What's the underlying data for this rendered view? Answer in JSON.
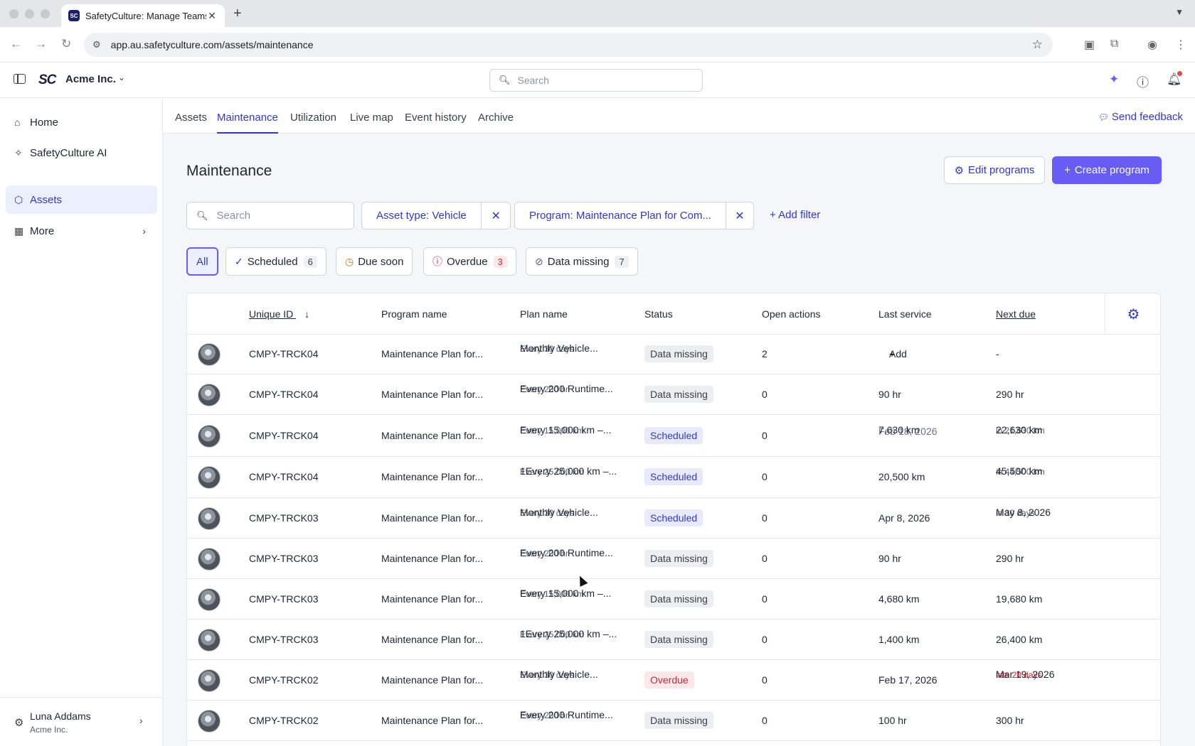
{
  "browser": {
    "tab_title": "SafetyCulture: Manage Teams",
    "favicon_text": "SC",
    "url": "app.au.safetyculture.com/assets/maintenance"
  },
  "header": {
    "logo_text": "SC",
    "org_name": "Acme Inc.",
    "search_placeholder": "Search"
  },
  "leftnav": {
    "items": [
      {
        "label": "Home",
        "icon": "home-icon"
      },
      {
        "label": "SafetyCulture AI",
        "icon": "sparkle-icon"
      },
      {
        "label": "Assets",
        "icon": "cube-icon",
        "active": true
      },
      {
        "label": "More",
        "icon": "grid-icon"
      }
    ],
    "user": {
      "name": "Luna Addams",
      "org": "Acme Inc."
    }
  },
  "subtabs": {
    "items": [
      "Assets",
      "Maintenance",
      "Utilization",
      "Live map",
      "Event history",
      "Archive"
    ],
    "active": "Maintenance",
    "feedback": "Send feedback"
  },
  "page": {
    "title": "Maintenance",
    "edit_programs": "Edit programs",
    "create_program": "Create program",
    "search_placeholder": "Search",
    "filters": {
      "asset_type": "Asset type: Vehicle",
      "program": "Program: Maintenance Plan for Com...",
      "add_filter": "Add filter"
    },
    "segments": {
      "all": "All",
      "scheduled": {
        "label": "Scheduled",
        "count": "6"
      },
      "due_soon": {
        "label": "Due soon"
      },
      "overdue": {
        "label": "Overdue",
        "count": "3"
      },
      "data_missing": {
        "label": "Data missing",
        "count": "7"
      }
    }
  },
  "table": {
    "columns": [
      "Unique ID",
      "Program name",
      "Plan name",
      "Status",
      "Open actions",
      "Last service",
      "Next due"
    ],
    "rows": [
      {
        "id": "CMPY-TRCK04",
        "program": "Maintenance Plan for...",
        "plan": "Monthly Vehicle...",
        "plan_sub": "Every 30 days",
        "status": "Data missing",
        "open": "2",
        "last": "Add",
        "last_sub": "",
        "next": "-",
        "next_sub": ""
      },
      {
        "id": "CMPY-TRCK04",
        "program": "Maintenance Plan for...",
        "plan": "Every 200 Runtime...",
        "plan_sub": "Every 200 hr",
        "status": "Data missing",
        "open": "0",
        "last": "90 hr",
        "last_sub": "",
        "next": "290 hr",
        "next_sub": ""
      },
      {
        "id": "CMPY-TRCK04",
        "program": "Maintenance Plan for...",
        "plan": "Every 15,000 km –...",
        "plan_sub": "Every 15,000 km",
        "status": "Scheduled",
        "open": "0",
        "last": "7,630 km",
        "last_sub": "Feb 18, 2026",
        "next": "22,630 km",
        "next_sub": "in 21,630 km"
      },
      {
        "id": "CMPY-TRCK04",
        "program": "Maintenance Plan for...",
        "plan": "1Every 25,000 km –...",
        "plan_sub": "Every 25,000 km",
        "status": "Scheduled",
        "open": "0",
        "last": "20,500 km",
        "last_sub": "",
        "next": "45,500 km",
        "next_sub": "in 44,500 km"
      },
      {
        "id": "CMPY-TRCK03",
        "program": "Maintenance Plan for...",
        "plan": "Monthly Vehicle...",
        "plan_sub": "Every 30 days",
        "status": "Scheduled",
        "open": "0",
        "last": "Apr 8, 2026",
        "last_sub": "",
        "next": "May 8, 2026",
        "next_sub": "in 30 days"
      },
      {
        "id": "CMPY-TRCK03",
        "program": "Maintenance Plan for...",
        "plan": "Every 200 Runtime...",
        "plan_sub": "Every 200 hr",
        "status": "Data missing",
        "open": "0",
        "last": "90 hr",
        "last_sub": "",
        "next": "290 hr",
        "next_sub": ""
      },
      {
        "id": "CMPY-TRCK03",
        "program": "Maintenance Plan for...",
        "plan": "Every 15,000 km –...",
        "plan_sub": "Every 15,000 km",
        "status": "Data missing",
        "open": "0",
        "last": "4,680 km",
        "last_sub": "",
        "next": "19,680 km",
        "next_sub": ""
      },
      {
        "id": "CMPY-TRCK03",
        "program": "Maintenance Plan for...",
        "plan": "1Every 25,000 km –...",
        "plan_sub": "Every 25,000 km",
        "status": "Data missing",
        "open": "0",
        "last": "1,400 km",
        "last_sub": "",
        "next": "26,400 km",
        "next_sub": ""
      },
      {
        "id": "CMPY-TRCK02",
        "program": "Maintenance Plan for...",
        "plan": "Monthly Vehicle...",
        "plan_sub": "Every 30 days",
        "status": "Overdue",
        "open": "0",
        "last": "Feb 17, 2026",
        "last_sub": "",
        "next": "Mar 19, 2026",
        "next_sub": "late 20 days"
      },
      {
        "id": "CMPY-TRCK02",
        "program": "Maintenance Plan for...",
        "plan": "Every 200 Runtime...",
        "plan_sub": "Every 200 hr",
        "status": "Data missing",
        "open": "0",
        "last": "100 hr",
        "last_sub": "",
        "next": "300 hr",
        "next_sub": ""
      }
    ]
  },
  "colors": {
    "accent": "#675df4",
    "accent_text": "#3338c9",
    "overdue": "#c62a2f"
  }
}
